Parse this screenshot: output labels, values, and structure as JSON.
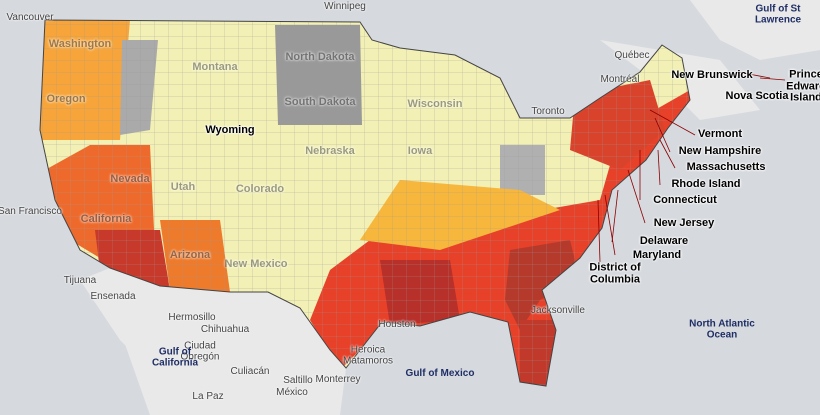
{
  "cities": [
    "Winnipeg",
    "Vancouver",
    "Québec",
    "Montréal",
    "Toronto",
    "San Francisco",
    "Tijuana",
    "Ensenada",
    "Hermosillo",
    "Chihuahua",
    "Ciudad Obregón",
    "Culiacán",
    "Saltillo",
    "Monterrey",
    "Heroica Matamoros",
    "Houston",
    "Jacksonville",
    "La Paz",
    "México"
  ],
  "states": [
    "Washington",
    "Oregon",
    "Montana",
    "Wyoming",
    "North Dakota",
    "South Dakota",
    "Nebraska",
    "Iowa",
    "Wisconsin",
    "Nevada",
    "Utah",
    "Colorado",
    "California",
    "Arizona",
    "New Mexico",
    "Vermont",
    "New Hampshire",
    "Massachusetts",
    "Rhode Island",
    "Connecticut",
    "New Jersey",
    "Delaware",
    "Maryland",
    "District of Columbia"
  ],
  "provinces": [
    "New Brunswick",
    "Nova Scotia",
    "Prince Edward Island"
  ],
  "water": [
    "Gulf of St Lawrence",
    "North Atlantic Ocean",
    "Gulf of California",
    "Gulf of Mexico"
  ]
}
